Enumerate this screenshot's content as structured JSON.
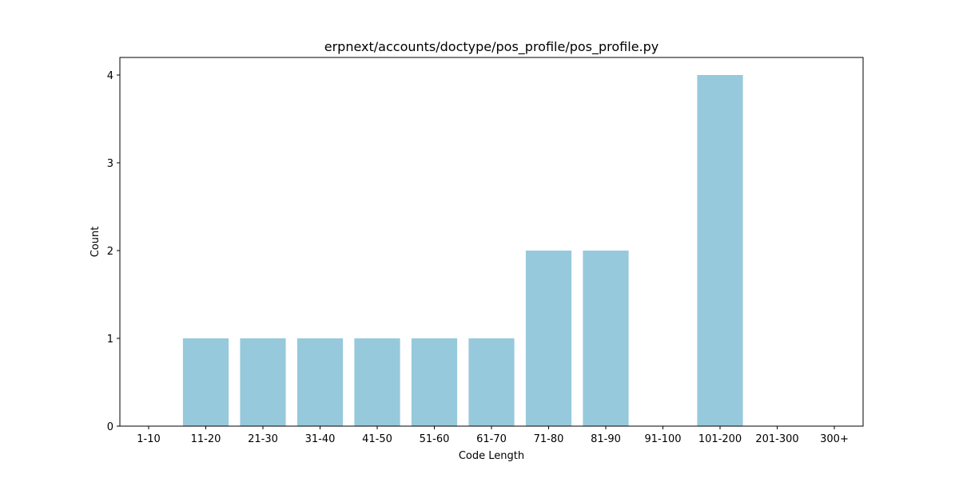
{
  "chart_data": {
    "type": "bar",
    "title": "erpnext/accounts/doctype/pos_profile/pos_profile.py",
    "xlabel": "Code Length",
    "ylabel": "Count",
    "categories": [
      "1-10",
      "11-20",
      "21-30",
      "31-40",
      "41-50",
      "51-60",
      "61-70",
      "71-80",
      "81-90",
      "91-100",
      "101-200",
      "201-300",
      "300+"
    ],
    "values": [
      0,
      1,
      1,
      1,
      1,
      1,
      1,
      2,
      2,
      0,
      4,
      0,
      0
    ],
    "yticks": [
      0,
      1,
      2,
      3,
      4
    ],
    "ylim": [
      0,
      4.2
    ],
    "grid": false,
    "bar_color": "#96c9dc"
  }
}
